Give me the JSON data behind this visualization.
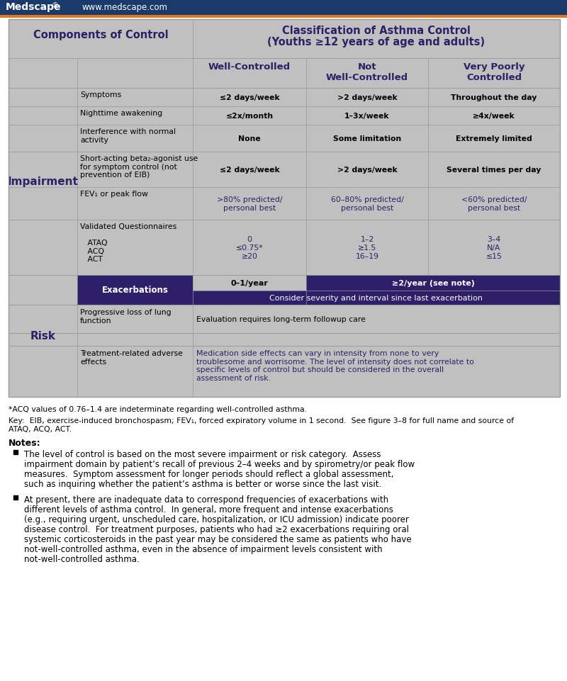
{
  "header_bg": "#1a3a6b",
  "header_orange": "#e07820",
  "table_bg": "#c0c0c0",
  "dark_navy": "#2e2068",
  "white": "#ffffff",
  "border_color": "#999999",
  "title1": "Classification of Asthma Control",
  "title2": "(Youths ≥12 years of age and adults)",
  "comp_label": "Components of Control",
  "imp_label": "Impairment",
  "risk_label": "Risk",
  "col_h1": "Well-Controlled",
  "col_h2": "Not\nWell-Controlled",
  "col_h3": "Very Poorly\nControlled",
  "imp_rows": [
    [
      "Symptoms",
      "≤2 days/week",
      ">2 days/week",
      "Throughout the day"
    ],
    [
      "Nighttime awakening",
      "≤2x/month",
      "1–3x/week",
      "≥4x/week"
    ],
    [
      "Interference with normal\nactivity",
      "None",
      "Some limitation",
      "Extremely limited"
    ],
    [
      "Short-acting beta₂-agonist use\nfor symptom control (not\nprevention of EIB)",
      "≤2 days/week",
      ">2 days/week",
      "Several times per day"
    ],
    [
      "FEV₁ or peak flow",
      ">80% predicted/\npersonal best",
      "60–80% predicted/\npersonal best",
      "<60% predicted/\npersonal best"
    ],
    [
      "Validated Questionnaires\n\n   ATAQ\n   ACQ\n   ACT",
      "0\n≤0.75*\n≥20",
      "1–2\n≥1.5\n16–19",
      "3–4\nN/A\n≤15"
    ]
  ],
  "exac_r1": [
    "0–1/year",
    "≥2/year (see note)"
  ],
  "exac_r2": "Consider severity and interval since last exacerbation",
  "prog_label": "Progressive loss of lung\nfunction",
  "prog_value": "Evaluation requires long-term followup care",
  "treat_label": "Treatment-related adverse\neffects",
  "treat_value": "Medication side effects can vary in intensity from none to very\ntroublesome and worrisome. The level of intensity does not correlate to\nspecific levels of control but should be considered in the overall\nassessment of risk.",
  "fn1": "*ACQ values of 0.76–1.4 are indeterminate regarding well-controlled asthma.",
  "fn2a": "Key:  EIB, exercise-induced bronchospasm; FEV₁, forced expiratory volume in 1 second.  See figure 3–8 for full name and source of",
  "fn2b": "ATAQ, ACQ, ACT.",
  "notes_hdr": "Notes:",
  "note1_lines": [
    "The level of control is based on the most severe impairment or risk category.  Assess",
    "impairment domain by patient’s recall of previous 2–4 weeks and by spirometry/or peak flow",
    "measures.  Symptom assessment for longer periods should reflect a global assessment,",
    "such as inquiring whether the patient’s asthma is better or worse since the last visit."
  ],
  "note2_lines": [
    "At present, there are inadequate data to correspond frequencies of exacerbations with",
    "different levels of asthma control.  In general, more frequent and intense exacerbations",
    "(e.g., requiring urgent, unscheduled care, hospitalization, or ICU admission) indicate poorer",
    "disease control.  For treatment purposes, patients who had ≥2 exacerbations requiring oral",
    "systemic corticosteroids in the past year may be considered the same as patients who have",
    "not-well-controlled asthma, even in the absence of impairment levels consistent with",
    "not-well-controlled asthma."
  ]
}
